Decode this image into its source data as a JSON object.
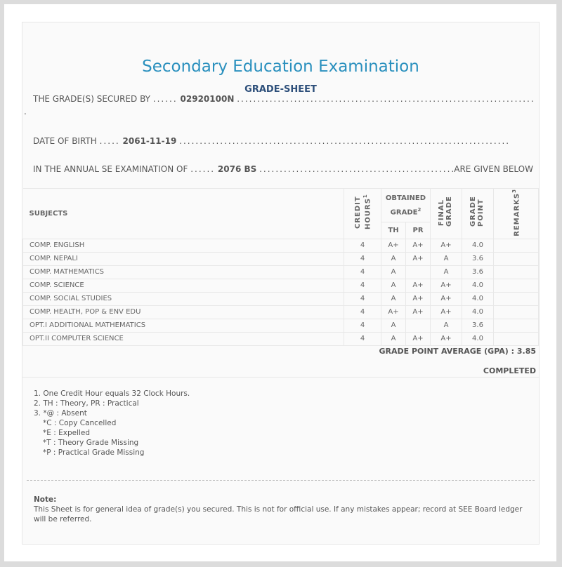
{
  "title": "Secondary Education Examination",
  "subtitle": "GRADE-SHEET",
  "info": {
    "secured_label": "THE GRADE(S) SECURED BY",
    "symbol_no": "02920100N",
    "dob_label": "DATE OF BIRTH",
    "dob": "2061-11-19",
    "exam_label": "IN THE ANNUAL SE EXAMINATION OF",
    "exam_year": "2076 BS",
    "given_below": "ARE GIVEN BELOW"
  },
  "table": {
    "headers": {
      "subjects": "SUBJECTS",
      "credit": "CREDIT HOURS",
      "credit_sup": "1",
      "obtained": "OBTAINED GRADE",
      "obtained_sup": "2",
      "th": "TH",
      "pr": "PR",
      "final": "FINAL GRADE",
      "gp": "GRADE POINT",
      "remarks": "REMARKS",
      "remarks_sup": "3"
    },
    "rows": [
      {
        "subject": "COMP. ENGLISH",
        "credit": "4",
        "th": "A+",
        "pr": "A+",
        "final": "A+",
        "gp": "4.0",
        "remarks": ""
      },
      {
        "subject": "COMP. NEPALI",
        "credit": "4",
        "th": "A",
        "pr": "A+",
        "final": "A",
        "gp": "3.6",
        "remarks": ""
      },
      {
        "subject": "COMP. MATHEMATICS",
        "credit": "4",
        "th": "A",
        "pr": "",
        "final": "A",
        "gp": "3.6",
        "remarks": ""
      },
      {
        "subject": "COMP. SCIENCE",
        "credit": "4",
        "th": "A",
        "pr": "A+",
        "final": "A+",
        "gp": "4.0",
        "remarks": ""
      },
      {
        "subject": "COMP. SOCIAL STUDIES",
        "credit": "4",
        "th": "A",
        "pr": "A+",
        "final": "A+",
        "gp": "4.0",
        "remarks": ""
      },
      {
        "subject": "COMP. HEALTH, POP & ENV EDU",
        "credit": "4",
        "th": "A+",
        "pr": "A+",
        "final": "A+",
        "gp": "4.0",
        "remarks": ""
      },
      {
        "subject": "OPT.I ADDITIONAL MATHEMATICS",
        "credit": "4",
        "th": "A",
        "pr": "",
        "final": "A",
        "gp": "3.6",
        "remarks": ""
      },
      {
        "subject": "OPT.II COMPUTER SCIENCE",
        "credit": "4",
        "th": "A",
        "pr": "A+",
        "final": "A+",
        "gp": "4.0",
        "remarks": ""
      }
    ]
  },
  "gpa": "GRADE POINT AVERAGE (GPA) : 3.85",
  "status": "COMPLETED",
  "footnotes": [
    "1. One Credit Hour equals 32 Clock Hours.",
    "2. TH : Theory, PR : Practical",
    "3. *@ : Absent",
    "*C : Copy Cancelled",
    "*E : Expelled",
    "*T : Theory Grade Missing",
    "*P : Practical Grade Missing"
  ],
  "note": {
    "label": "Note:",
    "text": "This Sheet is for general idea of grade(s) you secured. This is not for official use. If any mistakes appear; record at SEE Board ledger will be referred."
  }
}
